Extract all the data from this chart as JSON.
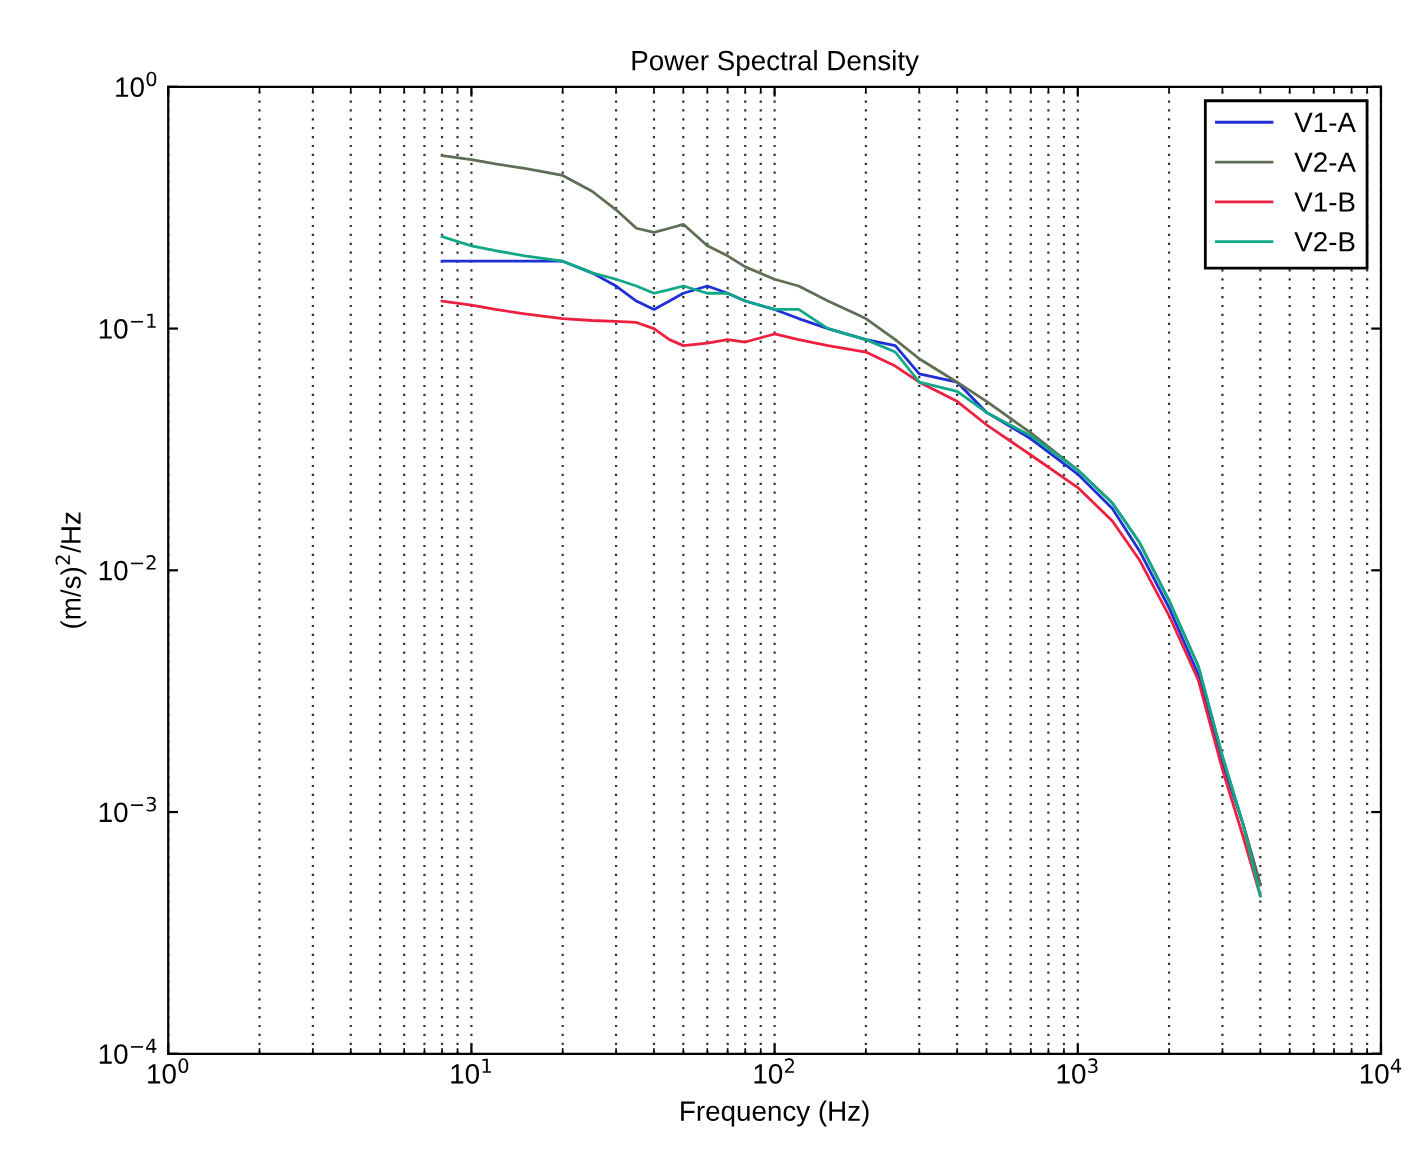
{
  "chart_data": {
    "type": "line",
    "title": "Power Spectral Density",
    "xlabel": "Frequency (Hz)",
    "ylabel": "(m/s)$^{2}$/Hz",
    "log": "xy",
    "xlim": [
      1,
      10000
    ],
    "xticks": [
      {
        "value": 1,
        "label": "10$^{0}$"
      },
      {
        "value": 10,
        "label": "10$^{1}$"
      },
      {
        "value": 100,
        "label": "10$^{2}$"
      },
      {
        "value": 1000,
        "label": "10$^{3}$"
      },
      {
        "value": 10000,
        "label": "10$^{4}$"
      }
    ],
    "ylim": [
      0.0001,
      1
    ],
    "yticks": [
      {
        "value": 0.0001,
        "label": "10$^{−4}$"
      },
      {
        "value": 0.001,
        "label": "10$^{−3}$"
      },
      {
        "value": 0.01,
        "label": "10$^{−2}$"
      },
      {
        "value": 0.1,
        "label": "10$^{−1}$"
      },
      {
        "value": 1,
        "label": "10$^{0}$"
      }
    ],
    "grid": "x",
    "legend": "top right",
    "line_style": "solid",
    "marker": "none",
    "x": [
      8,
      10,
      12,
      15,
      20,
      25,
      30,
      35,
      40,
      45,
      50,
      60,
      70,
      80,
      100,
      120,
      150,
      200,
      250,
      300,
      400,
      500,
      700,
      1000,
      1300,
      1600,
      2000,
      2500,
      3000,
      3500,
      4000
    ],
    "series": [
      {
        "name": "V1-A",
        "color": "#1f2fd8",
        "values": [
          0.19,
          0.19,
          0.19,
          0.19,
          0.19,
          0.17,
          0.15,
          0.13,
          0.12,
          0.13,
          0.14,
          0.15,
          0.14,
          0.13,
          0.12,
          0.11,
          0.1,
          0.09,
          0.085,
          0.065,
          0.06,
          0.045,
          0.035,
          0.025,
          0.018,
          0.012,
          0.007,
          0.0037,
          0.0016,
          0.0009,
          0.0005
        ]
      },
      {
        "name": "V2-A",
        "color": "#5f6f55",
        "values": [
          0.52,
          0.5,
          0.48,
          0.46,
          0.43,
          0.37,
          0.31,
          0.26,
          0.25,
          0.26,
          0.27,
          0.22,
          0.2,
          0.18,
          0.16,
          0.15,
          0.13,
          0.11,
          0.09,
          0.075,
          0.06,
          0.05,
          0.037,
          0.026,
          0.019,
          0.013,
          0.0075,
          0.004,
          0.0017,
          0.0009,
          0.0005
        ]
      },
      {
        "name": "V1-B",
        "color": "#ee2040",
        "values": [
          0.13,
          0.125,
          0.12,
          0.115,
          0.11,
          0.108,
          0.107,
          0.106,
          0.1,
          0.09,
          0.085,
          0.087,
          0.09,
          0.088,
          0.095,
          0.09,
          0.085,
          0.08,
          0.07,
          0.06,
          0.05,
          0.04,
          0.03,
          0.022,
          0.016,
          0.011,
          0.0065,
          0.0035,
          0.0015,
          0.0008,
          0.00045
        ]
      },
      {
        "name": "V2-B",
        "color": "#10a888",
        "values": [
          0.24,
          0.22,
          0.21,
          0.2,
          0.19,
          0.17,
          0.16,
          0.15,
          0.14,
          0.145,
          0.15,
          0.14,
          0.14,
          0.13,
          0.12,
          0.12,
          0.1,
          0.09,
          0.08,
          0.06,
          0.055,
          0.045,
          0.036,
          0.026,
          0.019,
          0.013,
          0.0075,
          0.004,
          0.0017,
          0.0009,
          0.00045
        ]
      }
    ]
  }
}
